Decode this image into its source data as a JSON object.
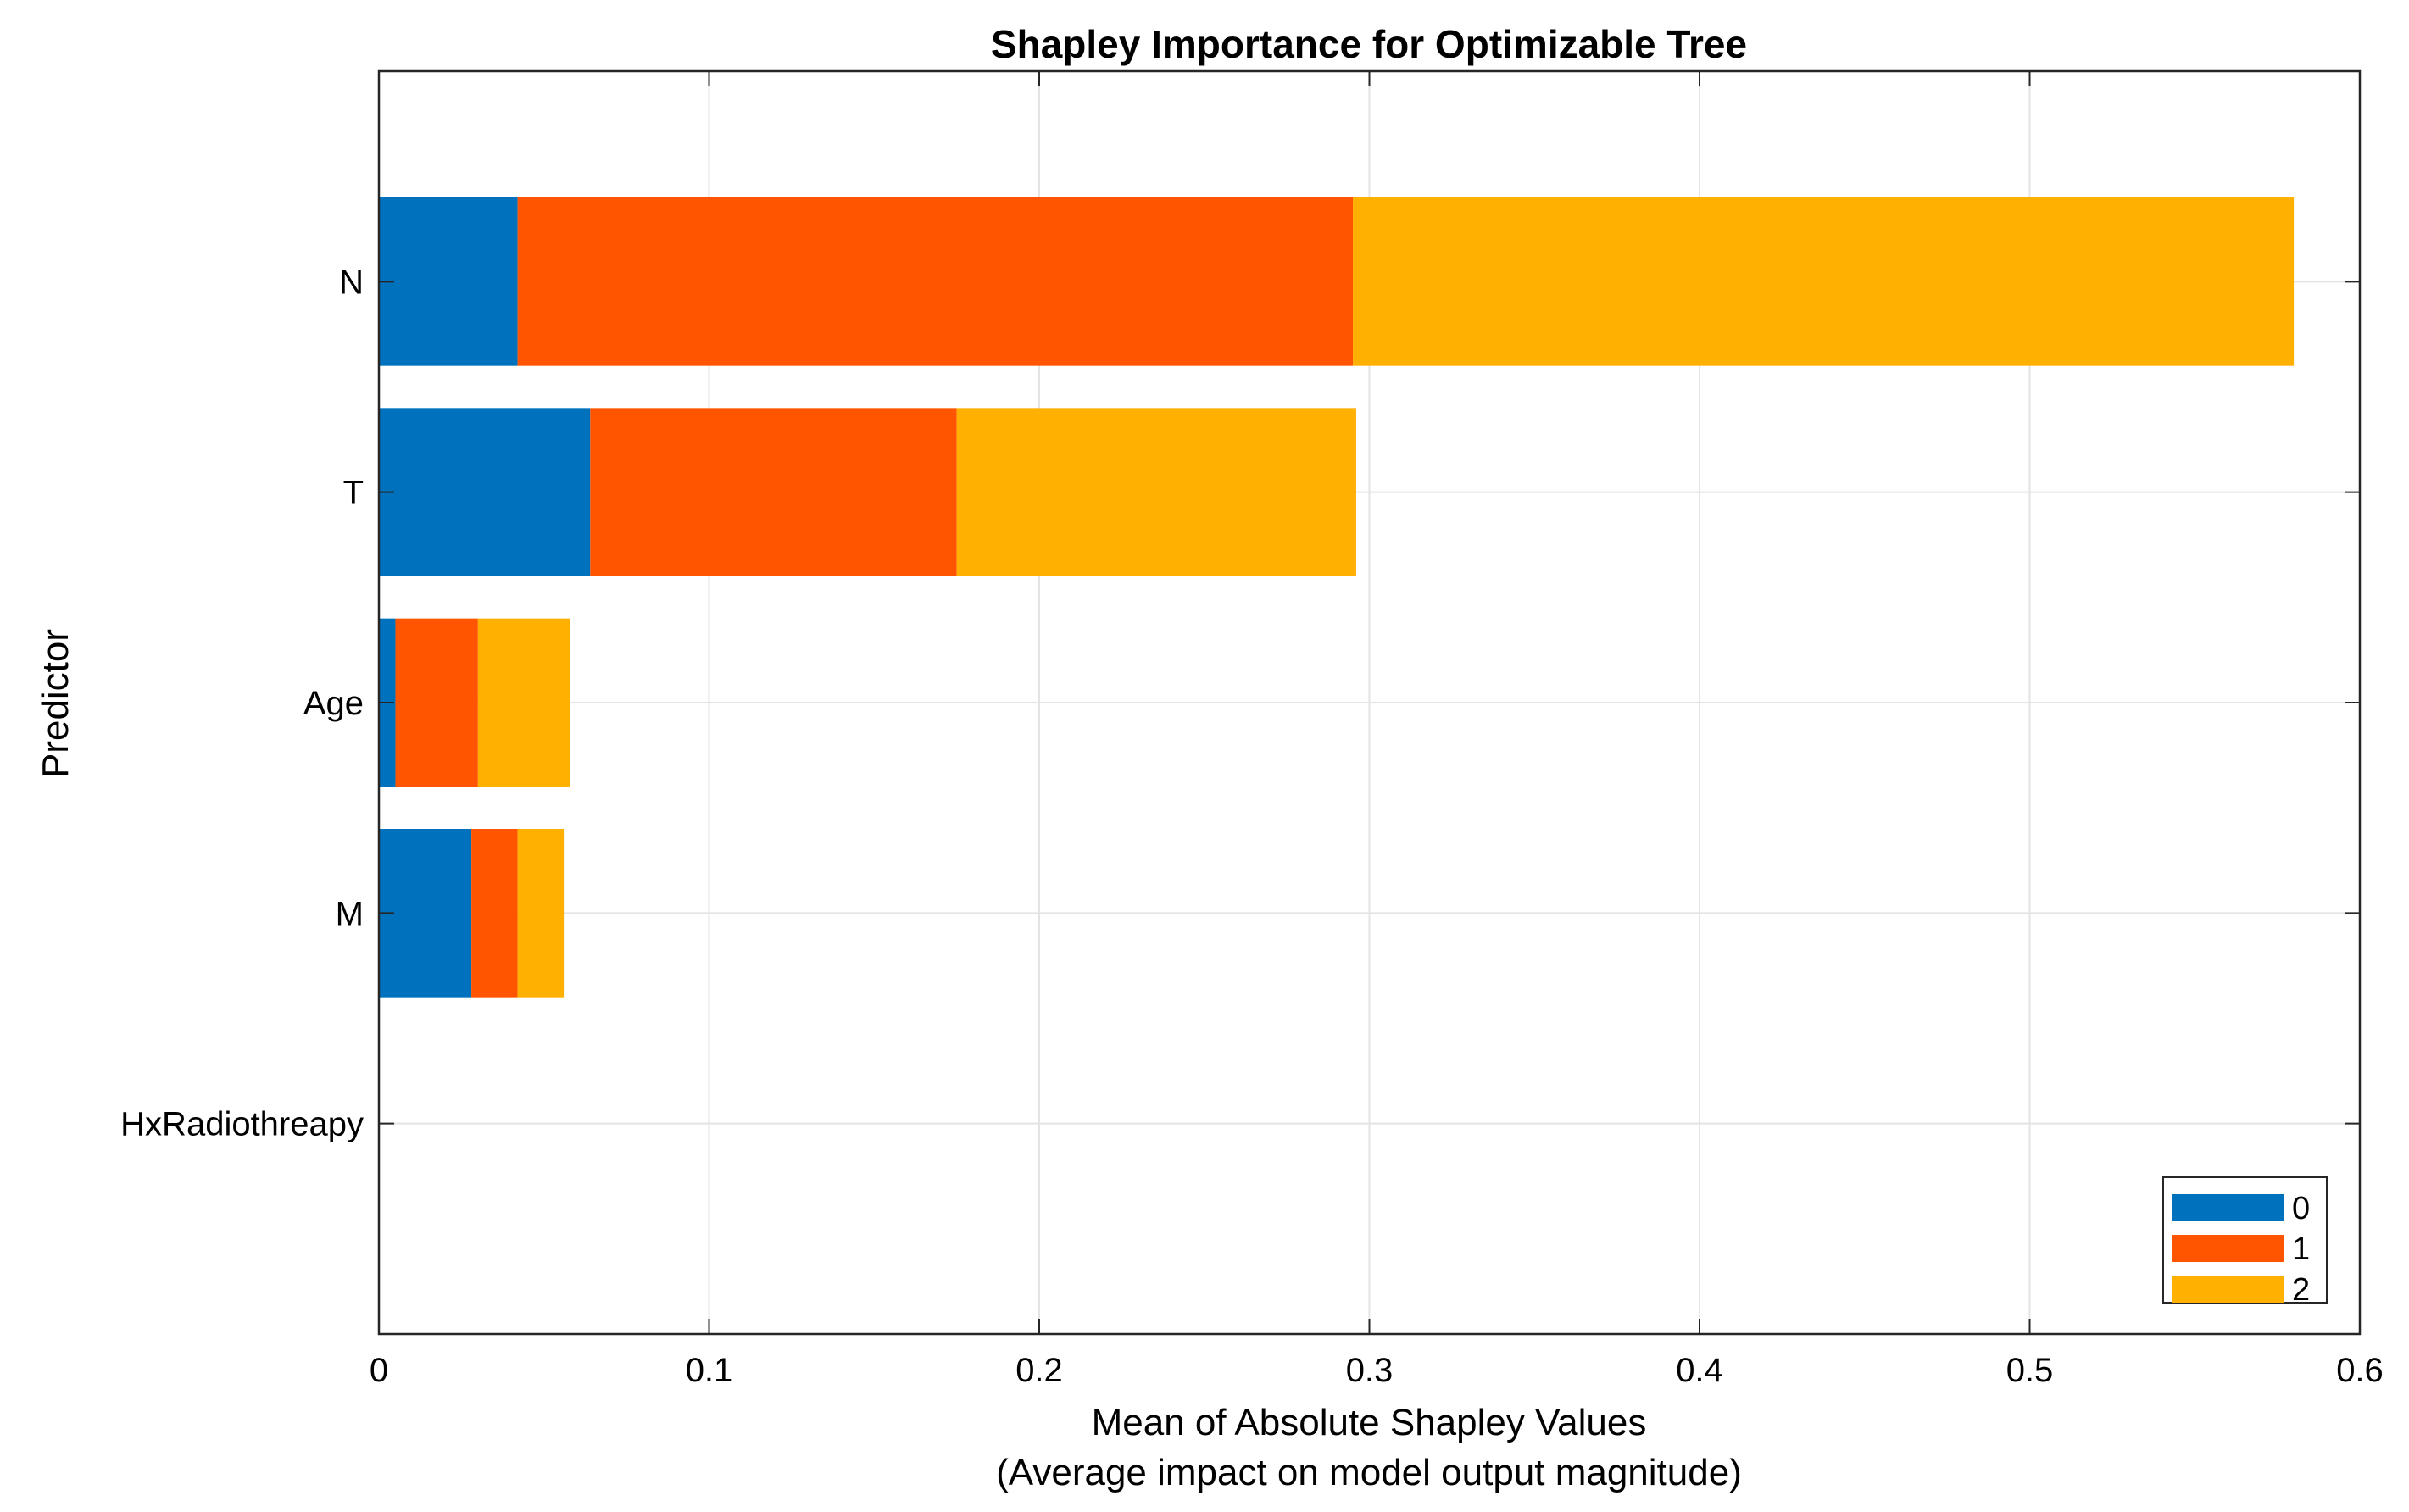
{
  "chart_data": {
    "type": "bar",
    "orientation": "horizontal",
    "stacked": true,
    "title": "Shapley Importance for Optimizable Tree",
    "xlabel": "Mean of Absolute Shapley Values",
    "xlabel_sub": "(Average impact on model output magnitude)",
    "ylabel": "Predictor",
    "categories": [
      "N",
      "T",
      "Age",
      "M",
      "HxRadiothreapy"
    ],
    "series": [
      {
        "name": "0",
        "color": "#0072BD",
        "values": [
          0.042,
          0.064,
          0.005,
          0.028,
          0
        ]
      },
      {
        "name": "1",
        "color": "#FF5500",
        "values": [
          0.253,
          0.111,
          0.025,
          0.014,
          0
        ]
      },
      {
        "name": "2",
        "color": "#FFB000",
        "values": [
          0.285,
          0.121,
          0.028,
          0.014,
          0
        ]
      }
    ],
    "xlim": [
      0,
      0.6
    ],
    "xticks": [
      0,
      0.1,
      0.2,
      0.3,
      0.4,
      0.5,
      0.6
    ],
    "xtick_labels": [
      "0",
      "0.1",
      "0.2",
      "0.3",
      "0.4",
      "0.5",
      "0.6"
    ],
    "grid": true,
    "legend_position": "bottom-right"
  }
}
